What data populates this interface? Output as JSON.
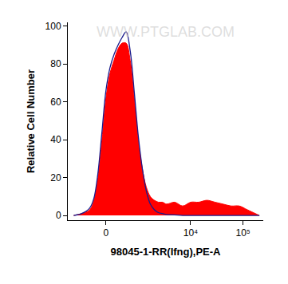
{
  "chart_data": {
    "type": "area",
    "x_label": "98045-1-RR(Ifng),PE-A",
    "y_label": "Relative Cell Number",
    "annotations": [
      {
        "text": "WWW.PTGLAB.COM"
      }
    ],
    "x": [
      -943,
      -619,
      -373,
      -270,
      -176,
      -86,
      0,
      86,
      176,
      270,
      373,
      488,
      619,
      772,
      944,
      1146,
      1385,
      1668,
      2008,
      2406,
      2881,
      3458,
      4928,
      7030,
      10040,
      14310,
      20420,
      29100,
      41520,
      59170,
      84580,
      120700,
      172000,
      205000
    ],
    "series": [
      {
        "type": "area",
        "color": "#ff0000",
        "values": [
          0,
          1,
          3,
          8,
          20,
          40,
          62,
          75,
          82,
          88,
          91,
          91,
          82,
          62,
          40,
          25,
          15,
          10,
          8,
          7,
          7,
          6,
          7,
          5,
          7,
          7,
          8,
          7,
          6,
          5,
          5,
          3,
          1,
          0
        ]
      },
      {
        "type": "line",
        "color": "#1a1a8c",
        "values": [
          0,
          1,
          4,
          9,
          22,
          44,
          66,
          78,
          85,
          90,
          94,
          97,
          87,
          65,
          42,
          25,
          13,
          6,
          3,
          1.5,
          1,
          0.5,
          0.3,
          0,
          0,
          0,
          0,
          0,
          0,
          0,
          0,
          0,
          0,
          0
        ]
      }
    ],
    "xlim": [
      -1250,
      243000
    ],
    "xticks": [
      0,
      {
        "value": 10000,
        "label": "10⁴"
      },
      {
        "value": 100000,
        "label": "10⁵"
      }
    ],
    "ylim": [
      -2.5,
      102
    ],
    "yticks": [
      0,
      20,
      40,
      60,
      80,
      100
    ],
    "grid": false
  }
}
